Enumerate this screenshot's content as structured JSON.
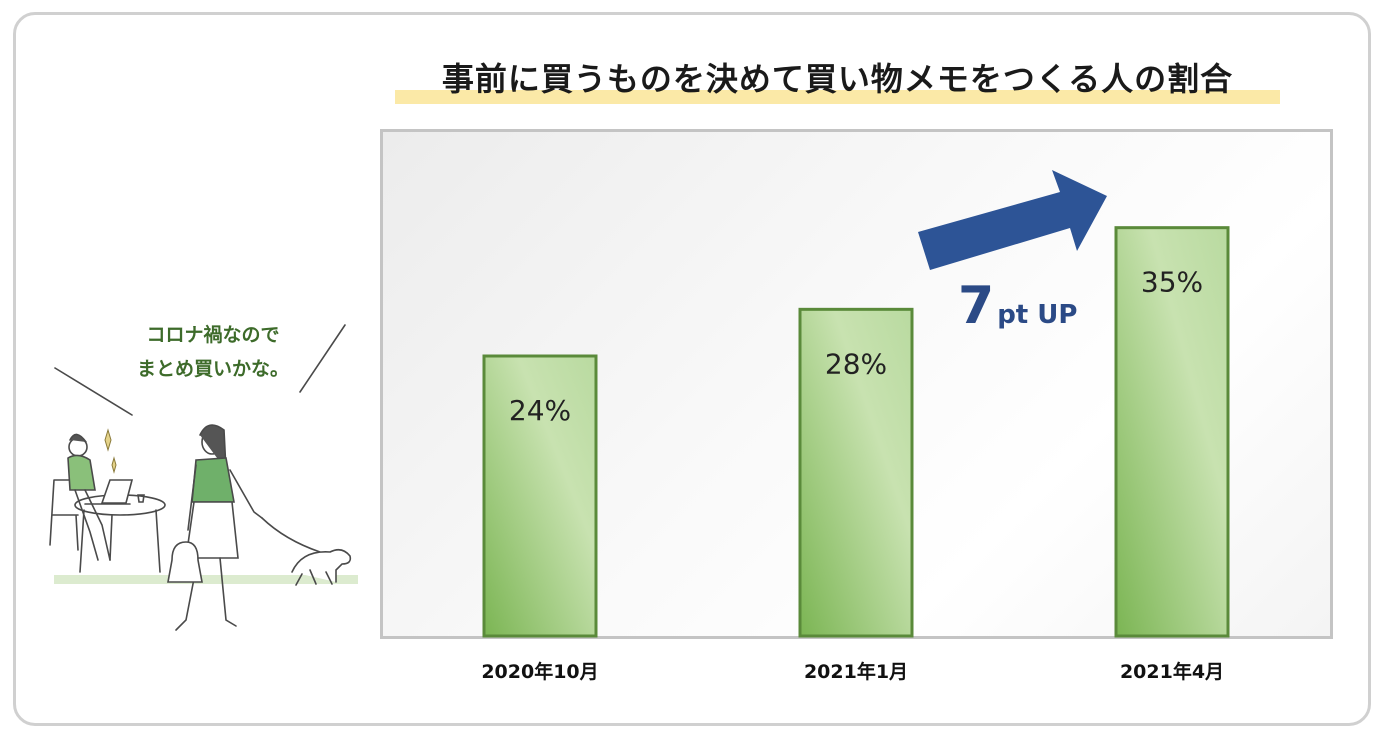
{
  "title": "事前に買うものを決めて買い物メモをつくる人の割合",
  "speech": {
    "line1": "コロナ禍なので",
    "line2": "まとめ買いかな。"
  },
  "callout": {
    "value": "7",
    "suffix": "pt UP"
  },
  "colors": {
    "bar_fill_light": "#c8e2b0",
    "bar_fill_dark": "#7bb553",
    "bar_stroke": "#5a8a3a",
    "arrow": "#2d5496",
    "title_highlight": "#fbe9a7"
  },
  "chart_data": {
    "type": "bar",
    "title": "事前に買うものを決めて買い物メモをつくる人の割合",
    "categories": [
      "2020年10月",
      "2021年1月",
      "2021年4月"
    ],
    "values": [
      24,
      28,
      35
    ],
    "value_labels": [
      "24%",
      "28%",
      "35%"
    ],
    "unit": "%",
    "ylim": [
      0,
      42
    ],
    "grid": false,
    "legend": "none",
    "annotation": "7pt UP"
  }
}
